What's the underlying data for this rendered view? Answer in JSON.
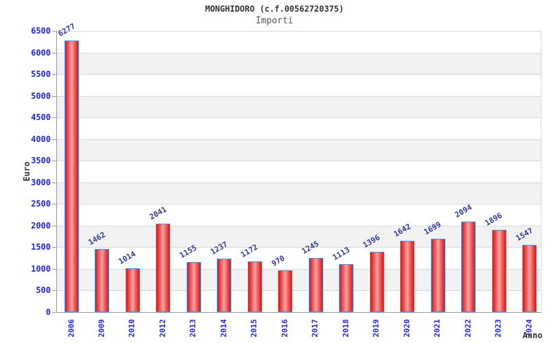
{
  "chart_data": {
    "type": "bar",
    "title": "MONGHIDORO (c.f.00562720375)",
    "subtitle": "Importi",
    "xlabel": "Anno",
    "ylabel": "Euro",
    "categories": [
      "2006",
      "2009",
      "2010",
      "2012",
      "2013",
      "2014",
      "2015",
      "2016",
      "2017",
      "2018",
      "2019",
      "2020",
      "2021",
      "2022",
      "2023",
      "2024"
    ],
    "values": [
      6277,
      1462,
      1014,
      2041,
      1155,
      1237,
      1172,
      970,
      1245,
      1113,
      1396,
      1642,
      1699,
      2094,
      1896,
      1547
    ],
    "ylim": [
      0,
      6500
    ],
    "ytick_step": 500,
    "yticks": [
      0,
      500,
      1000,
      1500,
      2000,
      2500,
      3000,
      3500,
      4000,
      4500,
      5000,
      5500,
      6000,
      6500
    ],
    "grid": "horizontal-bands",
    "legend": null,
    "colors": {
      "bar_fill_edge": "#d81717",
      "bar_fill_center": "#f8a3a3",
      "bar_border": "#4f8fef",
      "band_alt": "#f2f2f2",
      "band_main": "#ffffff",
      "gridline": "#d9d9d9",
      "axis_line": "#999999",
      "tick_label": "#2424d6",
      "value_label": "#333a99",
      "title": "#333333",
      "subtitle": "#555555",
      "axis_title": "#333333"
    }
  }
}
